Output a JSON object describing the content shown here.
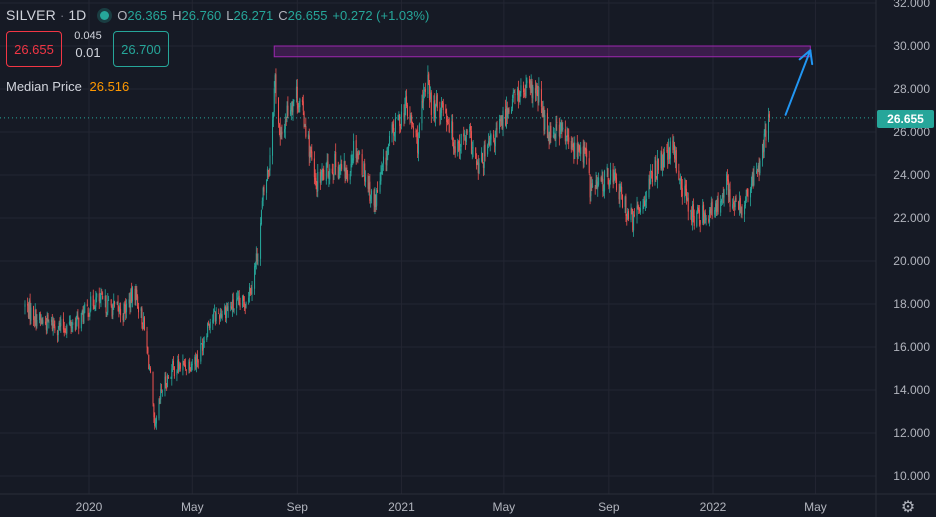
{
  "header": {
    "symbol": "SILVER",
    "interval": "1D",
    "open_label": "O",
    "open": "26.365",
    "high_label": "H",
    "high": "26.760",
    "low_label": "L",
    "low": "26.271",
    "close_label": "C",
    "close": "26.655",
    "change": "+0.272 (+1.03%)"
  },
  "quote": {
    "sell": "26.655",
    "spread_top": "0.045",
    "spread_bottom": "0.01",
    "buy": "26.700"
  },
  "indicator": {
    "name": "Median Price",
    "value": "26.516"
  },
  "price_tag": "26.655",
  "colors": {
    "background": "#161a25",
    "up": "#26a69a",
    "down": "#ef5350",
    "zone": "#9c27b0",
    "arrow": "#2196f3",
    "grid": "#232632",
    "axis_text": "#b2b5be"
  },
  "chart_data": {
    "type": "candlestick",
    "title": "",
    "xlabel": "",
    "ylabel": "",
    "ylim": [
      9.4,
      32.2
    ],
    "grid": true,
    "y_ticks": [
      "10.000",
      "12.000",
      "14.000",
      "16.000",
      "18.000",
      "20.000",
      "22.000",
      "24.000",
      "26.000",
      "28.000",
      "30.000",
      "32.000"
    ],
    "x_ticks": [
      {
        "label": "2020",
        "date": "2020-01-01"
      },
      {
        "label": "May",
        "date": "2020-05-01"
      },
      {
        "label": "Sep",
        "date": "2020-09-01"
      },
      {
        "label": "2021",
        "date": "2021-01-01"
      },
      {
        "label": "May",
        "date": "2021-05-01"
      },
      {
        "label": "Sep",
        "date": "2021-09-01"
      },
      {
        "label": "2022",
        "date": "2022-01-01"
      },
      {
        "label": "May",
        "date": "2022-05-01"
      }
    ],
    "x_range": [
      "2019-10-18",
      "2022-07-05"
    ],
    "price_path": [
      [
        "2019-10-18",
        17.9
      ],
      [
        "2019-11-05",
        17.2
      ],
      [
        "2019-12-01",
        16.9
      ],
      [
        "2019-12-20",
        17.2
      ],
      [
        "2020-01-08",
        18.2
      ],
      [
        "2020-01-25",
        17.9
      ],
      [
        "2020-02-10",
        17.6
      ],
      [
        "2020-02-24",
        18.6
      ],
      [
        "2020-03-05",
        17.0
      ],
      [
        "2020-03-12",
        15.0
      ],
      [
        "2020-03-18",
        12.0
      ],
      [
        "2020-03-26",
        14.0
      ],
      [
        "2020-04-08",
        15.0
      ],
      [
        "2020-04-25",
        15.2
      ],
      [
        "2020-05-08",
        15.5
      ],
      [
        "2020-05-20",
        17.2
      ],
      [
        "2020-06-10",
        17.8
      ],
      [
        "2020-06-30",
        18.0
      ],
      [
        "2020-07-10",
        19.0
      ],
      [
        "2020-07-17",
        20.5
      ],
      [
        "2020-07-23",
        23.0
      ],
      [
        "2020-07-30",
        24.5
      ],
      [
        "2020-08-06",
        28.5
      ],
      [
        "2020-08-12",
        25.5
      ],
      [
        "2020-08-20",
        27.0
      ],
      [
        "2020-08-31",
        27.8
      ],
      [
        "2020-09-10",
        26.5
      ],
      [
        "2020-09-22",
        23.5
      ],
      [
        "2020-10-01",
        24.0
      ],
      [
        "2020-10-15",
        24.5
      ],
      [
        "2020-10-30",
        24.0
      ],
      [
        "2020-11-07",
        25.5
      ],
      [
        "2020-11-20",
        24.0
      ],
      [
        "2020-11-30",
        22.6
      ],
      [
        "2020-12-10",
        24.2
      ],
      [
        "2020-12-20",
        25.8
      ],
      [
        "2021-01-06",
        27.2
      ],
      [
        "2021-01-20",
        25.5
      ],
      [
        "2021-02-01",
        28.9
      ],
      [
        "2021-02-05",
        27.0
      ],
      [
        "2021-02-20",
        27.3
      ],
      [
        "2021-03-05",
        25.4
      ],
      [
        "2021-03-22",
        25.8
      ],
      [
        "2021-03-31",
        24.2
      ],
      [
        "2021-04-10",
        25.0
      ],
      [
        "2021-04-25",
        26.1
      ],
      [
        "2021-05-10",
        27.5
      ],
      [
        "2021-05-20",
        27.8
      ],
      [
        "2021-06-05",
        27.9
      ],
      [
        "2021-06-12",
        27.5
      ],
      [
        "2021-06-20",
        26.0
      ],
      [
        "2021-07-05",
        26.2
      ],
      [
        "2021-07-20",
        25.2
      ],
      [
        "2021-08-05",
        25.0
      ],
      [
        "2021-08-10",
        23.4
      ],
      [
        "2021-08-20",
        23.5
      ],
      [
        "2021-09-05",
        24.1
      ],
      [
        "2021-09-15",
        23.0
      ],
      [
        "2021-09-29",
        21.8
      ],
      [
        "2021-10-15",
        23.2
      ],
      [
        "2021-10-25",
        24.3
      ],
      [
        "2021-11-05",
        24.7
      ],
      [
        "2021-11-15",
        25.2
      ],
      [
        "2021-11-26",
        23.4
      ],
      [
        "2021-12-10",
        22.0
      ],
      [
        "2021-12-20",
        22.2
      ],
      [
        "2022-01-05",
        22.3
      ],
      [
        "2022-01-15",
        23.8
      ],
      [
        "2022-01-25",
        22.5
      ],
      [
        "2022-02-05",
        22.5
      ],
      [
        "2022-02-15",
        23.5
      ],
      [
        "2022-02-24",
        24.5
      ],
      [
        "2022-03-04",
        25.8
      ],
      [
        "2022-03-08",
        26.655
      ]
    ],
    "last_price": 26.655,
    "resistance_zone": {
      "from": "2020-08-05",
      "to": "2022-04-25",
      "low": 29.5,
      "high": 30.0
    },
    "annotation_arrow": {
      "from": [
        "2022-03-27",
        26.8
      ],
      "to": [
        "2022-04-25",
        29.8
      ]
    }
  }
}
